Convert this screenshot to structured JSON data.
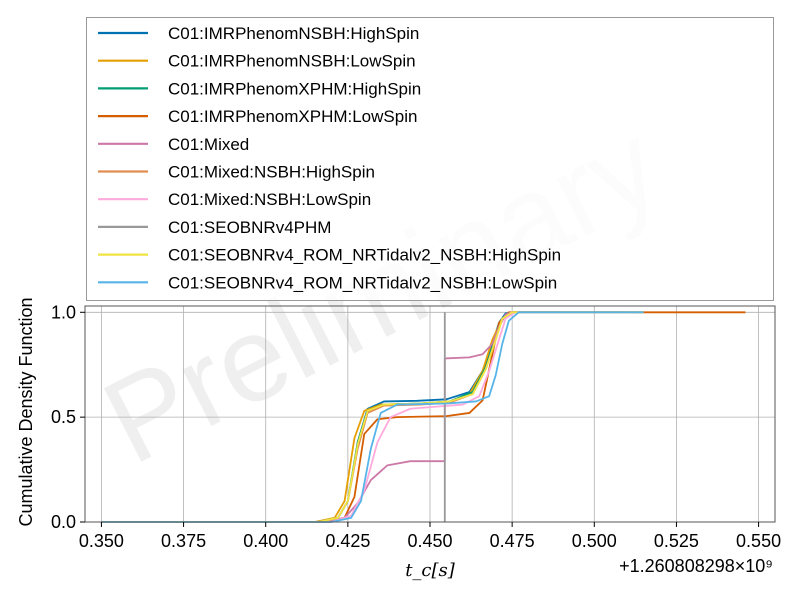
{
  "chart_data": {
    "type": "line",
    "watermark": "Preliminary",
    "xlabel": "t_c[s]",
    "ylabel": "Cumulative Density Function",
    "x_offset_text": "+1.260808298×10⁹",
    "xlim": [
      0.345,
      0.555
    ],
    "ylim": [
      0.0,
      1.03
    ],
    "xticks": [
      0.35,
      0.375,
      0.4,
      0.425,
      0.45,
      0.475,
      0.5,
      0.525,
      0.55
    ],
    "xtick_labels": [
      "0.350",
      "0.375",
      "0.400",
      "0.425",
      "0.450",
      "0.475",
      "0.500",
      "0.525",
      "0.550"
    ],
    "yticks": [
      0.0,
      0.5,
      1.0
    ],
    "ytick_labels": [
      "0.0",
      "0.5",
      "1.0"
    ],
    "grid": true,
    "legend_position": "above plot",
    "series": [
      {
        "name": "C01:IMRPhenomNSBH:HighSpin",
        "color": "#0072b2",
        "x": [
          0.35,
          0.415,
          0.422,
          0.425,
          0.428,
          0.431,
          0.436,
          0.446,
          0.455,
          0.462,
          0.466,
          0.469,
          0.471,
          0.473,
          0.476,
          0.49,
          0.51
        ],
        "y": [
          0.0,
          0.0,
          0.02,
          0.1,
          0.38,
          0.54,
          0.575,
          0.578,
          0.585,
          0.62,
          0.72,
          0.85,
          0.95,
          0.995,
          1.0,
          1.0,
          1.0
        ]
      },
      {
        "name": "C01:IMRPhenomNSBH:LowSpin",
        "color": "#e69f00",
        "x": [
          0.35,
          0.415,
          0.421,
          0.424,
          0.427,
          0.43,
          0.435,
          0.447,
          0.456,
          0.462,
          0.466,
          0.469,
          0.472,
          0.475,
          0.495,
          0.512
        ],
        "y": [
          0.0,
          0.0,
          0.02,
          0.1,
          0.4,
          0.53,
          0.56,
          0.565,
          0.575,
          0.61,
          0.72,
          0.87,
          0.97,
          1.0,
          1.0,
          1.0
        ]
      },
      {
        "name": "C01:IMRPhenomXPHM:HighSpin",
        "color": "#009e73",
        "x": [
          0.35,
          0.416,
          0.422,
          0.425,
          0.428,
          0.431,
          0.436,
          0.447,
          0.456,
          0.463,
          0.467,
          0.47,
          0.472,
          0.475,
          0.495,
          0.515
        ],
        "y": [
          0.0,
          0.0,
          0.02,
          0.1,
          0.38,
          0.53,
          0.56,
          0.565,
          0.575,
          0.62,
          0.74,
          0.88,
          0.97,
          1.0,
          1.0,
          1.0
        ]
      },
      {
        "name": "C01:IMRPhenomXPHM:LowSpin",
        "color": "#d55e00",
        "x": [
          0.35,
          0.418,
          0.424,
          0.427,
          0.43,
          0.434,
          0.44,
          0.455,
          0.462,
          0.466,
          0.469,
          0.471,
          0.474,
          0.48,
          0.52,
          0.546
        ],
        "y": [
          0.0,
          0.0,
          0.02,
          0.12,
          0.42,
          0.49,
          0.5,
          0.505,
          0.52,
          0.58,
          0.8,
          0.95,
          1.0,
          1.0,
          1.0,
          1.0
        ]
      },
      {
        "name": "C01:Mixed",
        "color": "#cc79a7",
        "x": [
          0.35,
          0.418,
          0.424,
          0.428,
          0.432,
          0.437,
          0.444,
          0.4545,
          0.4545,
          0.462,
          0.466,
          0.469,
          0.471,
          0.473,
          0.475,
          0.49
        ],
        "y": [
          0.0,
          0.0,
          0.02,
          0.09,
          0.2,
          0.27,
          0.29,
          0.29,
          0.78,
          0.785,
          0.8,
          0.85,
          0.93,
          0.99,
          1.0,
          1.0
        ]
      },
      {
        "name": "C01:Mixed:NSBH:HighSpin",
        "color": "#e08d4f",
        "x": [
          0.35,
          0.416,
          0.422,
          0.425,
          0.428,
          0.431,
          0.436,
          0.447,
          0.456,
          0.463,
          0.467,
          0.47,
          0.472,
          0.475,
          0.495,
          0.515
        ],
        "y": [
          0.0,
          0.0,
          0.02,
          0.1,
          0.35,
          0.52,
          0.555,
          0.56,
          0.57,
          0.61,
          0.73,
          0.87,
          0.97,
          1.0,
          1.0,
          1.0
        ]
      },
      {
        "name": "C01:Mixed:NSBH:LowSpin",
        "color": "#ffaadd",
        "x": [
          0.35,
          0.42,
          0.426,
          0.43,
          0.434,
          0.438,
          0.444,
          0.452,
          0.46,
          0.465,
          0.468,
          0.471,
          0.473,
          0.476,
          0.495,
          0.512
        ],
        "y": [
          0.0,
          0.0,
          0.03,
          0.15,
          0.38,
          0.5,
          0.54,
          0.55,
          0.56,
          0.6,
          0.72,
          0.87,
          0.97,
          1.0,
          1.0,
          1.0
        ]
      },
      {
        "name": "C01:SEOBNRv4PHM",
        "color": "#999999",
        "x": [
          0.4545,
          0.4545
        ],
        "y": [
          0.0,
          1.0
        ]
      },
      {
        "name": "C01:SEOBNRv4_ROM_NRTidalv2_NSBH:HighSpin",
        "color": "#f0e442",
        "x": [
          0.35,
          0.416,
          0.422,
          0.425,
          0.428,
          0.431,
          0.436,
          0.447,
          0.456,
          0.463,
          0.467,
          0.47,
          0.472,
          0.475,
          0.495,
          0.515
        ],
        "y": [
          0.0,
          0.0,
          0.02,
          0.1,
          0.37,
          0.53,
          0.56,
          0.565,
          0.575,
          0.61,
          0.73,
          0.87,
          0.97,
          1.0,
          1.0,
          1.0
        ]
      },
      {
        "name": "C01:SEOBNRv4_ROM_NRTidalv2_NSBH:LowSpin",
        "color": "#56b4e9",
        "x": [
          0.35,
          0.42,
          0.426,
          0.429,
          0.432,
          0.435,
          0.44,
          0.455,
          0.464,
          0.468,
          0.47,
          0.472,
          0.474,
          0.477,
          0.495,
          0.515
        ],
        "y": [
          0.0,
          0.0,
          0.02,
          0.1,
          0.35,
          0.52,
          0.56,
          0.565,
          0.575,
          0.6,
          0.7,
          0.85,
          0.96,
          1.0,
          1.0,
          1.0
        ]
      }
    ]
  }
}
